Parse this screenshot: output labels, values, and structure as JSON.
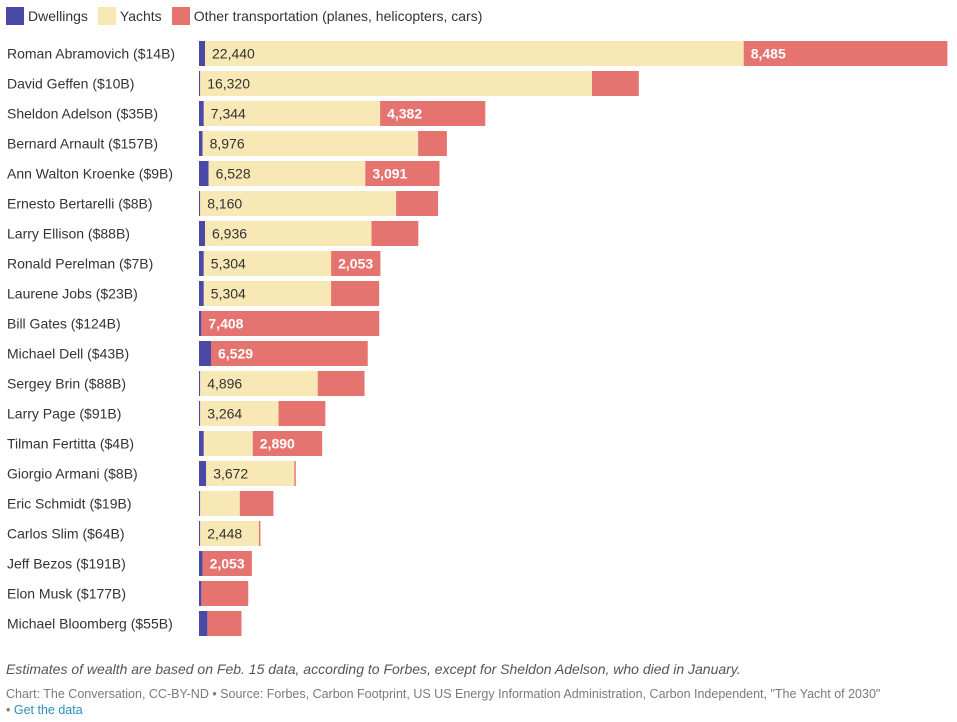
{
  "colors": {
    "dwellings": "#4a4aa6",
    "yachts": "#f7e8b6",
    "other": "#e5736f",
    "label_dark": "#333333",
    "label_light": "#ffffff"
  },
  "legend": [
    {
      "name": "Dwellings",
      "color": "#4a4aa6"
    },
    {
      "name": "Yachts",
      "color": "#f7e8b6"
    },
    {
      "name": "Other transportation (planes, helicopters, cars)",
      "color": "#e5736f"
    }
  ],
  "chart_data": {
    "type": "bar",
    "orientation": "horizontal",
    "stacked": true,
    "xlim": [
      0,
      31200
    ],
    "grid": false,
    "legend_position": "top-left",
    "categories": [
      "Roman Abramovich ($14B)",
      "David Geffen ($10B)",
      "Sheldon Adelson ($35B)",
      "Bernard Arnault ($157B)",
      "Ann Walton Kroenke ($9B)",
      "Ernesto Bertarelli ($8B)",
      "Larry Ellison ($88B)",
      "Ronald Perelman ($7B)",
      "Laurene Jobs ($23B)",
      "Bill Gates ($124B)",
      "Michael Dell ($43B)",
      "Sergey Brin ($88B)",
      "Larry Page ($91B)",
      "Tilman Fertitta ($4B)",
      "Giorgio Armani ($8B)",
      "Eric Schmidt ($19B)",
      "Carlos Slim ($64B)",
      "Jeff Bezos ($191B)",
      "Elon Musk ($177B)",
      "Michael Bloomberg ($55B)"
    ],
    "series": [
      {
        "name": "Dwellings",
        "values": [
          250,
          50,
          200,
          150,
          400,
          50,
          250,
          200,
          200,
          100,
          500,
          50,
          50,
          200,
          300,
          50,
          50,
          150,
          100,
          350
        ],
        "labels": [
          "",
          "",
          "",
          "",
          "",
          "",
          "",
          "",
          "",
          "",
          "",
          "",
          "",
          "",
          "",
          "",
          "",
          "",
          "",
          ""
        ]
      },
      {
        "name": "Yachts",
        "values": [
          22440,
          16320,
          7344,
          8976,
          6528,
          8160,
          6936,
          5304,
          5304,
          0,
          0,
          4896,
          3264,
          2040,
          3672,
          1650,
          2448,
          0,
          0,
          0
        ],
        "labels": [
          "22,440",
          "16,320",
          "7,344",
          "8,976",
          "6,528",
          "8,160",
          "6,936",
          "5,304",
          "5,304",
          "",
          "",
          "4,896",
          "3,264",
          "",
          "3,672",
          "",
          "2,448",
          "",
          "",
          ""
        ]
      },
      {
        "name": "Other transportation (planes, helicopters, cars)",
        "values": [
          8485,
          1950,
          4382,
          1200,
          3091,
          1750,
          1950,
          2053,
          2000,
          7408,
          6529,
          1950,
          1950,
          2890,
          60,
          1400,
          60,
          2053,
          1950,
          1420
        ],
        "labels": [
          "8,485",
          "",
          "4,382",
          "",
          "3,091",
          "",
          "",
          "2,053",
          "",
          "7,408",
          "6,529",
          "",
          "",
          "2,890",
          "",
          "",
          "",
          "2,053",
          "",
          ""
        ]
      }
    ]
  },
  "notes": "Estimates of wealth are based on Feb. 15 data, according to Forbes, except for Sheldon Adelson, who died in January.",
  "credit": {
    "text": "Chart: The Conversation, CC-BY-ND • Source: Forbes, Carbon Footprint, US US Energy Information Administration, Carbon Independent, \"The Yacht of 2030\"",
    "separator": "•",
    "link": "Get the data"
  }
}
